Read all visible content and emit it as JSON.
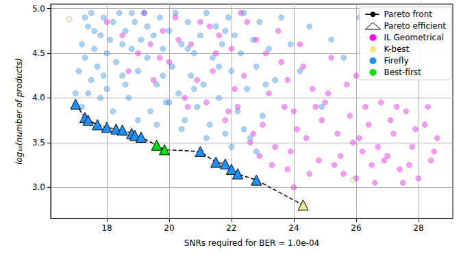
{
  "chart_data": {
    "type": "scatter",
    "x_label": "SNRs required for BER = 1.0e-04",
    "y_label": "log₁₀(number of products)",
    "xlim": [
      16.2,
      29.1
    ],
    "xticks": [
      18,
      20,
      22,
      24,
      26,
      28
    ],
    "ylim": [
      2.65,
      5.05
    ],
    "yticks": [
      {
        "value": 3,
        "label": "3.0"
      },
      {
        "value": 3.5,
        "label": "3.5"
      },
      {
        "value": 4,
        "label": "4.0"
      },
      {
        "value": 4.5,
        "label": "4.5"
      },
      {
        "value": 5,
        "label": "5.0"
      }
    ],
    "grid": true,
    "legend": "upper right",
    "series": [
      {
        "name": "Pareto front",
        "type": "line",
        "line_style": "dashed",
        "color": "#000000",
        "x": [
          17.0,
          17.3,
          17.4,
          17.7,
          18.0,
          18.3,
          18.5,
          18.8,
          18.9,
          19.1,
          19.6,
          19.85,
          21.0,
          21.5,
          21.8,
          22.0,
          22.2,
          22.8,
          24.3
        ],
        "values": [
          3.93,
          3.78,
          3.75,
          3.7,
          3.67,
          3.65,
          3.64,
          3.6,
          3.58,
          3.56,
          3.47,
          3.42,
          3.4,
          3.28,
          3.26,
          3.2,
          3.15,
          3.08,
          2.8
        ]
      },
      {
        "name": "Pareto efficient",
        "type": "scatter",
        "marker": "triangle",
        "color": "#ffffff",
        "colors": [
          "#1e90ff",
          "#1e90ff",
          "#1e90ff",
          "#1e90ff",
          "#1e90ff",
          "#1e90ff",
          "#1e90ff",
          "#1e90ff",
          "#1e90ff",
          "#1e90ff",
          "#00e000",
          "#00e000",
          "#1e90ff",
          "#1e90ff",
          "#1e90ff",
          "#1e90ff",
          "#1e90ff",
          "#1e90ff",
          "#f0e68c"
        ],
        "x": [
          17.0,
          17.3,
          17.4,
          17.7,
          18.0,
          18.3,
          18.5,
          18.8,
          18.9,
          19.1,
          19.6,
          19.85,
          21.0,
          21.5,
          21.8,
          22.0,
          22.2,
          22.8,
          24.3
        ],
        "values": [
          3.93,
          3.78,
          3.75,
          3.7,
          3.67,
          3.65,
          3.64,
          3.6,
          3.58,
          3.56,
          3.47,
          3.42,
          3.4,
          3.28,
          3.26,
          3.2,
          3.15,
          3.08,
          2.8
        ]
      },
      {
        "name": "IL Geometrical",
        "type": "scatter",
        "marker": "circle",
        "color": "#ff00ff",
        "x": [
          18.0,
          18.5,
          19.0,
          19.2,
          19.5,
          19.8,
          20.0,
          20.2,
          20.5,
          20.7,
          21.0,
          21.2,
          21.4,
          21.6,
          21.8,
          22.0,
          22.2,
          22.4,
          22.6,
          22.8,
          23.0,
          23.2,
          23.4,
          23.6,
          23.8,
          24.0,
          24.2,
          24.4,
          24.6,
          24.8,
          25.0,
          25.2,
          25.4,
          25.6,
          25.8,
          26.0,
          26.2,
          26.4,
          26.6,
          26.8,
          27.0,
          27.2,
          27.4,
          27.6,
          27.8,
          28.0,
          28.2,
          28.4,
          28.6,
          23.3,
          24.5,
          25.5,
          26.5,
          27.5,
          23.7,
          24.9,
          26.1,
          27.3,
          22.1,
          22.9,
          23.5,
          24.3,
          25.1,
          25.9,
          26.7,
          27.9,
          28.3,
          21.5,
          20.9,
          20.3,
          19.7,
          22.5,
          23.1,
          24.1,
          24.7,
          25.3,
          26.3,
          27.1,
          28.5,
          22.7,
          23.9,
          21.9,
          20.6,
          19.4,
          18.7,
          25.7,
          26.9,
          27.7,
          24.0,
          26.0,
          21.3,
          23.8,
          22.3
        ],
        "values": [
          4.85,
          4.7,
          4.5,
          4.95,
          4.2,
          4.75,
          4.4,
          4.9,
          4.0,
          4.6,
          4.85,
          3.95,
          4.3,
          4.7,
          3.75,
          4.55,
          3.9,
          4.25,
          3.5,
          4.65,
          3.7,
          4.05,
          3.45,
          4.4,
          3.2,
          3.85,
          4.6,
          3.55,
          4.1,
          3.3,
          3.95,
          4.45,
          3.6,
          3.15,
          3.8,
          4.25,
          3.4,
          3.7,
          3.05,
          3.95,
          3.35,
          3.6,
          3.2,
          3.85,
          3.45,
          3.1,
          3.7,
          3.3,
          3.55,
          3.25,
          3.15,
          3.35,
          3.25,
          3.05,
          3.9,
          3.75,
          3.55,
          3.9,
          4.1,
          3.35,
          4.75,
          4.35,
          4.05,
          3.5,
          3.45,
          3.65,
          3.9,
          4.5,
          4.2,
          4.65,
          4.45,
          4.85,
          4.5,
          3.65,
          3.9,
          3.25,
          3.9,
          3.75,
          3.4,
          3.6,
          3.4,
          3.85,
          3.9,
          4.6,
          4.3,
          4.15,
          3.3,
          3.25,
          3.0,
          3.1,
          4.8,
          4.2,
          4.95
        ]
      },
      {
        "name": "K-best",
        "type": "scatter",
        "marker": "circle",
        "color": "#f0e68c",
        "x": [
          16.8,
          25.9,
          24.3
        ],
        "values": [
          4.88,
          3.08,
          2.8
        ]
      },
      {
        "name": "Firefly",
        "type": "scatter",
        "marker": "circle",
        "color": "#1e90ff",
        "x": [
          17.0,
          17.1,
          17.2,
          17.3,
          17.4,
          17.5,
          17.5,
          17.6,
          17.7,
          17.8,
          17.9,
          18.0,
          18.0,
          18.1,
          18.2,
          18.3,
          18.4,
          18.5,
          18.5,
          18.6,
          18.7,
          18.8,
          18.9,
          19.0,
          19.1,
          19.2,
          19.3,
          19.4,
          19.5,
          19.6,
          19.7,
          19.8,
          19.9,
          20.0,
          20.1,
          20.2,
          20.3,
          20.4,
          20.5,
          20.6,
          20.7,
          20.8,
          20.9,
          21.0,
          21.1,
          21.2,
          21.3,
          21.4,
          21.5,
          21.6,
          21.7,
          21.8,
          21.9,
          22.0,
          22.1,
          22.2,
          22.3,
          22.4,
          22.5,
          22.6,
          22.7,
          22.8,
          22.9,
          23.0,
          23.2,
          23.4,
          23.6,
          23.9,
          24.2,
          24.5,
          24.9,
          25.2,
          25.6,
          26.1,
          17.2,
          17.4,
          17.6,
          17.9,
          18.2,
          18.6,
          19.0,
          19.3,
          19.6,
          20.0,
          20.4,
          20.8,
          21.2,
          21.6,
          22.0,
          22.4,
          22.8,
          23.1,
          17.3,
          18.8,
          20.6,
          21.8,
          17.8,
          19.8
        ],
        "values": [
          4.05,
          4.3,
          4.6,
          4.45,
          4.8,
          4.2,
          4.95,
          4.55,
          4.35,
          4.7,
          4.9,
          4.5,
          4.1,
          4.65,
          4.85,
          4.4,
          4.95,
          4.6,
          4.25,
          4.75,
          4.0,
          4.55,
          4.85,
          4.3,
          4.65,
          4.95,
          4.45,
          3.85,
          4.7,
          4.15,
          4.9,
          4.55,
          3.95,
          4.75,
          4.35,
          4.95,
          4.05,
          4.6,
          3.75,
          4.85,
          4.25,
          4.5,
          3.9,
          4.7,
          4.15,
          4.95,
          3.7,
          4.45,
          4.8,
          4.0,
          4.6,
          3.6,
          4.9,
          4.3,
          4.7,
          3.85,
          4.5,
          4.95,
          4.1,
          3.55,
          4.65,
          4.35,
          4.85,
          3.8,
          4.55,
          4.2,
          4.9,
          4.6,
          4.3,
          4.8,
          3.9,
          4.65,
          4.45,
          4.9,
          3.9,
          4.05,
          4.75,
          4.25,
          3.85,
          4.15,
          3.75,
          4.8,
          3.7,
          3.95,
          3.65,
          4.1,
          3.55,
          4.35,
          3.45,
          3.65,
          3.4,
          4.15,
          4.9,
          4.95,
          4.55,
          4.75,
          4.0,
          4.25
        ]
      },
      {
        "name": "Best-first",
        "type": "scatter",
        "marker": "circle",
        "color": "#00e000",
        "x": [
          19.6,
          19.85
        ],
        "values": [
          3.47,
          3.42
        ]
      }
    ]
  }
}
